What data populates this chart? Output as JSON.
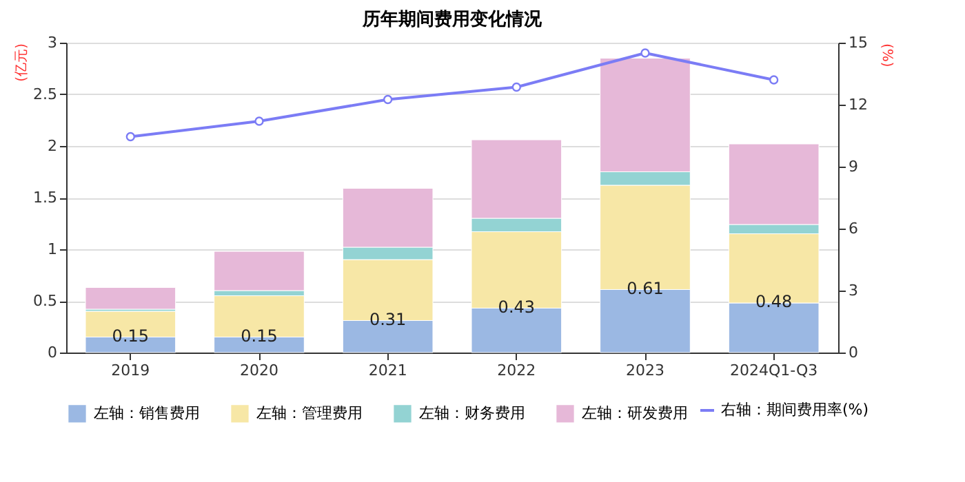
{
  "chart_data": {
    "type": "bar",
    "title": "历年期间费用变化情况",
    "ylabel": "(亿元)",
    "y2label": "(%)",
    "categories": [
      "2019",
      "2020",
      "2021",
      "2022",
      "2023",
      "2024Q1-Q3"
    ],
    "stacked": true,
    "ylim": [
      0,
      3
    ],
    "yticks": [
      0,
      0.5,
      1,
      1.5,
      2,
      2.5,
      3
    ],
    "y2lim": [
      0,
      15
    ],
    "y2ticks": [
      0,
      3,
      6,
      9,
      12,
      15
    ],
    "grid": "y",
    "legend": "bottom",
    "series": [
      {
        "name": "左轴：销售费用",
        "color": "#9bb8e3",
        "values": [
          0.15,
          0.15,
          0.31,
          0.43,
          0.61,
          0.48
        ],
        "value_labels": [
          "0.15",
          "0.15",
          "0.31",
          "0.43",
          "0.61",
          "0.48"
        ]
      },
      {
        "name": "左轴：管理费用",
        "color": "#f7e7a6",
        "values": [
          0.25,
          0.4,
          0.59,
          0.74,
          1.01,
          0.67
        ]
      },
      {
        "name": "左轴：财务费用",
        "color": "#93d3d3",
        "values": [
          0.02,
          0.05,
          0.12,
          0.13,
          0.13,
          0.09
        ]
      },
      {
        "name": "左轴：研发费用",
        "color": "#e6b8d8",
        "values": [
          0.21,
          0.38,
          0.57,
          0.76,
          1.1,
          0.78
        ]
      },
      {
        "name": "右轴：期间费用率(%)",
        "color": "#7b7cf5",
        "type": "line",
        "axis": "y2",
        "marker": "circle",
        "values": [
          10.45,
          11.2,
          12.25,
          12.85,
          14.5,
          13.2
        ]
      }
    ]
  }
}
